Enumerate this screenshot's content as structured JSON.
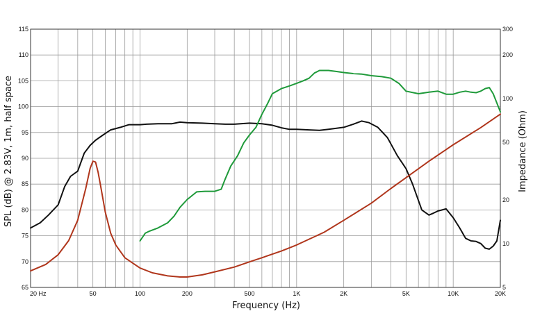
{
  "chart_data": {
    "type": "line",
    "title": "",
    "xlabel": "Frequency (Hz)",
    "ylabel_left": "SPL (dB) @ 2.83V, 1m, half space",
    "ylabel_right": "Impedance (Ohm)",
    "x_scale": "log",
    "xlim": [
      20,
      20000
    ],
    "ylim_left": [
      65,
      115
    ],
    "ylim_right": [
      5,
      300
    ],
    "y_right_scale": "log",
    "grid": true,
    "x_ticks": [
      {
        "value": 20,
        "label": "20  Hz"
      },
      {
        "value": 50,
        "label": "50"
      },
      {
        "value": 100,
        "label": "100"
      },
      {
        "value": 200,
        "label": "200"
      },
      {
        "value": 500,
        "label": "500"
      },
      {
        "value": 1000,
        "label": "1K"
      },
      {
        "value": 2000,
        "label": "2K"
      },
      {
        "value": 5000,
        "label": "5K"
      },
      {
        "value": 10000,
        "label": "10K"
      },
      {
        "value": 20000,
        "label": "20K"
      }
    ],
    "y_left_ticks": [
      {
        "value": 65,
        "label": "65"
      },
      {
        "value": 70,
        "label": "70"
      },
      {
        "value": 75,
        "label": "75"
      },
      {
        "value": 80,
        "label": "80"
      },
      {
        "value": 85,
        "label": "85"
      },
      {
        "value": 90,
        "label": "90"
      },
      {
        "value": 95,
        "label": "95"
      },
      {
        "value": 100,
        "label": "100"
      },
      {
        "value": 105,
        "label": "105"
      },
      {
        "value": 110,
        "label": "110"
      },
      {
        "value": 115,
        "label": "115"
      }
    ],
    "y_right_ticks": [
      {
        "value": 5,
        "label": "5"
      },
      {
        "value": 10,
        "label": "10"
      },
      {
        "value": 20,
        "label": "20"
      },
      {
        "value": 50,
        "label": "50"
      },
      {
        "value": 100,
        "label": "100"
      },
      {
        "value": 200,
        "label": "200"
      },
      {
        "value": 300,
        "label": "300"
      }
    ],
    "series": [
      {
        "color": "#111111",
        "axis": "left",
        "x": [
          20,
          23,
          26,
          30,
          33,
          36,
          40,
          44,
          48,
          52,
          58,
          65,
          75,
          85,
          100,
          110,
          130,
          160,
          180,
          200,
          250,
          300,
          350,
          400,
          500,
          600,
          700,
          800,
          900,
          1000,
          1200,
          1400,
          1600,
          2000,
          2300,
          2600,
          2900,
          3300,
          3800,
          4400,
          5000,
          5500,
          6300,
          7000,
          7500,
          8000,
          9000,
          10000,
          11000,
          12000,
          13000,
          14000,
          15000,
          16000,
          17000,
          18000,
          19000,
          20000
        ],
        "values": [
          76.5,
          77.5,
          79.0,
          81.0,
          84.5,
          86.5,
          87.5,
          91.0,
          92.5,
          93.5,
          94.5,
          95.5,
          96.0,
          96.5,
          96.5,
          96.6,
          96.7,
          96.7,
          97.0,
          96.9,
          96.8,
          96.7,
          96.6,
          96.6,
          96.8,
          96.7,
          96.4,
          95.9,
          95.6,
          95.6,
          95.5,
          95.4,
          95.6,
          96.0,
          96.6,
          97.2,
          96.9,
          96.0,
          94.0,
          90.5,
          88.0,
          85.0,
          80.0,
          79.0,
          79.4,
          79.8,
          80.2,
          78.5,
          76.5,
          74.5,
          74.0,
          73.9,
          73.5,
          72.6,
          72.4,
          73.0,
          74.0,
          78.0
        ]
      },
      {
        "color": "#1f9a3a",
        "axis": "left",
        "x": [
          100,
          108,
          115,
          130,
          150,
          165,
          180,
          200,
          230,
          260,
          300,
          330,
          350,
          380,
          420,
          460,
          500,
          550,
          600,
          650,
          700,
          800,
          900,
          1000,
          1100,
          1200,
          1300,
          1400,
          1600,
          1800,
          2000,
          2300,
          2600,
          3000,
          3500,
          4000,
          4500,
          5000,
          6000,
          7000,
          8000,
          9000,
          10000,
          11000,
          12000,
          13000,
          14000,
          15000,
          16000,
          17000,
          18000,
          20000
        ],
        "values": [
          74.0,
          75.5,
          75.9,
          76.5,
          77.5,
          78.8,
          80.5,
          82.0,
          83.5,
          83.6,
          83.6,
          84.0,
          86.0,
          88.5,
          90.5,
          93.0,
          94.5,
          96.0,
          98.5,
          100.5,
          102.5,
          103.5,
          104.0,
          104.5,
          105.0,
          105.5,
          106.5,
          107.0,
          107.0,
          106.8,
          106.6,
          106.4,
          106.3,
          106.0,
          105.8,
          105.5,
          104.5,
          103.0,
          102.5,
          102.8,
          103.0,
          102.4,
          102.4,
          102.8,
          103.0,
          102.8,
          102.7,
          103.0,
          103.5,
          103.7,
          102.5,
          99.0
        ]
      },
      {
        "color": "#b0361c",
        "axis": "right",
        "x": [
          20,
          25,
          30,
          35,
          40,
          45,
          48,
          50,
          52,
          54,
          56,
          60,
          65,
          70,
          80,
          100,
          120,
          150,
          180,
          200,
          250,
          300,
          400,
          500,
          600,
          800,
          1000,
          1500,
          2000,
          3000,
          4000,
          5000,
          7000,
          10000,
          15000,
          20000
        ],
        "values": [
          6.5,
          7.2,
          8.4,
          10.5,
          14.5,
          24.0,
          33.0,
          37.0,
          36.5,
          31.0,
          25.0,
          16.5,
          11.8,
          9.8,
          8.0,
          6.8,
          6.3,
          6.0,
          5.9,
          5.9,
          6.1,
          6.4,
          6.9,
          7.5,
          8.0,
          8.9,
          9.8,
          12.0,
          14.5,
          19.0,
          24.0,
          28.5,
          37.0,
          48.0,
          63.0,
          78.0
        ]
      }
    ]
  }
}
